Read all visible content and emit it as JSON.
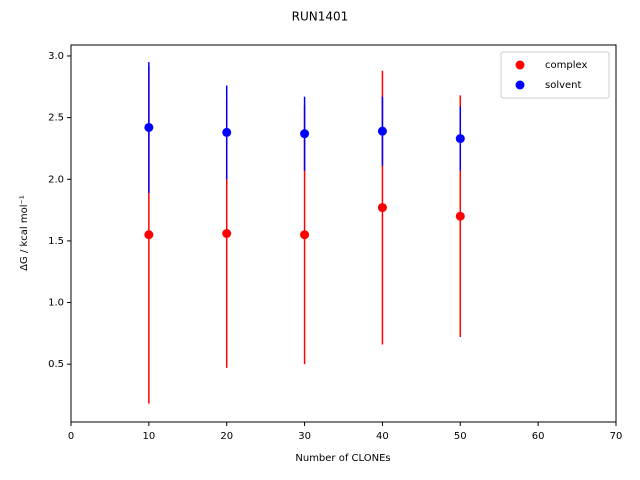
{
  "chart_data": {
    "type": "errorbar",
    "title": "RUN1401",
    "xlabel": "Number of CLONEs",
    "ylabel": "ΔG / kcal mol⁻¹",
    "x": [
      10,
      20,
      30,
      40,
      50
    ],
    "series": [
      {
        "name": "complex",
        "color": "#ff0000",
        "values": [
          1.55,
          1.56,
          1.55,
          1.77,
          1.7
        ],
        "errors": [
          1.37,
          1.09,
          1.05,
          1.11,
          0.98
        ]
      },
      {
        "name": "solvent",
        "color": "#0000ff",
        "values": [
          2.42,
          2.38,
          2.37,
          2.39,
          2.33
        ],
        "errors": [
          0.53,
          0.38,
          0.3,
          0.28,
          0.26
        ]
      }
    ],
    "xlim": [
      0,
      70
    ],
    "xticks": [
      0,
      10,
      20,
      30,
      40,
      50,
      60,
      70
    ],
    "ylim": [
      0.031,
      3.089
    ],
    "yticks": [
      0.5,
      {
        "value": 1,
        "label": "1.0"
      },
      1.5,
      {
        "value": 2,
        "label": "2.0"
      },
      2.5,
      {
        "value": 3,
        "label": "3.0"
      }
    ],
    "legend": "upper right",
    "grid": false
  }
}
